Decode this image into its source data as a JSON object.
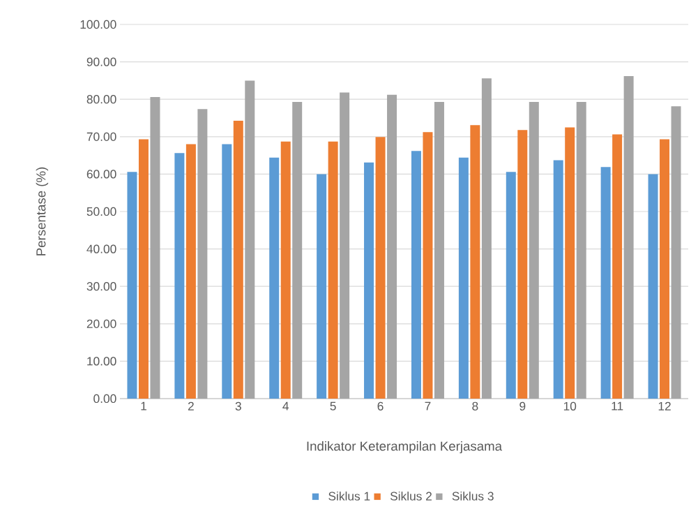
{
  "chart_data": {
    "type": "bar",
    "xlabel": "Indikator Keterampilan Kerjasama",
    "ylabel": "Persentase (%)",
    "categories": [
      "1",
      "2",
      "3",
      "4",
      "5",
      "6",
      "7",
      "8",
      "9",
      "10",
      "11",
      "12"
    ],
    "series": [
      {
        "name": "Siklus 1",
        "color": "#5b9bd5",
        "values": [
          60.6,
          65.6,
          68.0,
          64.4,
          60.0,
          63.1,
          66.2,
          64.4,
          60.6,
          63.7,
          61.9,
          60.0
        ]
      },
      {
        "name": "Siklus 2",
        "color": "#ed7d31",
        "values": [
          69.3,
          68.0,
          74.3,
          68.7,
          68.7,
          69.9,
          71.2,
          73.1,
          71.8,
          72.5,
          70.6,
          69.3
        ]
      },
      {
        "name": "Siklus 3",
        "color": "#a5a5a5",
        "values": [
          80.6,
          77.4,
          85.0,
          79.3,
          81.8,
          81.2,
          79.3,
          85.6,
          79.3,
          79.3,
          86.2,
          78.1
        ]
      }
    ],
    "ylim": [
      0,
      100
    ],
    "yticks": [
      {
        "value": 0,
        "label": "0.00"
      },
      {
        "value": 10,
        "label": "10.00"
      },
      {
        "value": 20,
        "label": "20.00"
      },
      {
        "value": 30,
        "label": "30.00"
      },
      {
        "value": 40,
        "label": "40.00"
      },
      {
        "value": 50,
        "label": "50.00"
      },
      {
        "value": 60,
        "label": "60.00"
      },
      {
        "value": 70,
        "label": "70.00"
      },
      {
        "value": 80,
        "label": "80.00"
      },
      {
        "value": 90,
        "label": "90.00"
      },
      {
        "value": 100,
        "label": "100.00"
      }
    ],
    "grid": "y",
    "legend": "bottom"
  }
}
